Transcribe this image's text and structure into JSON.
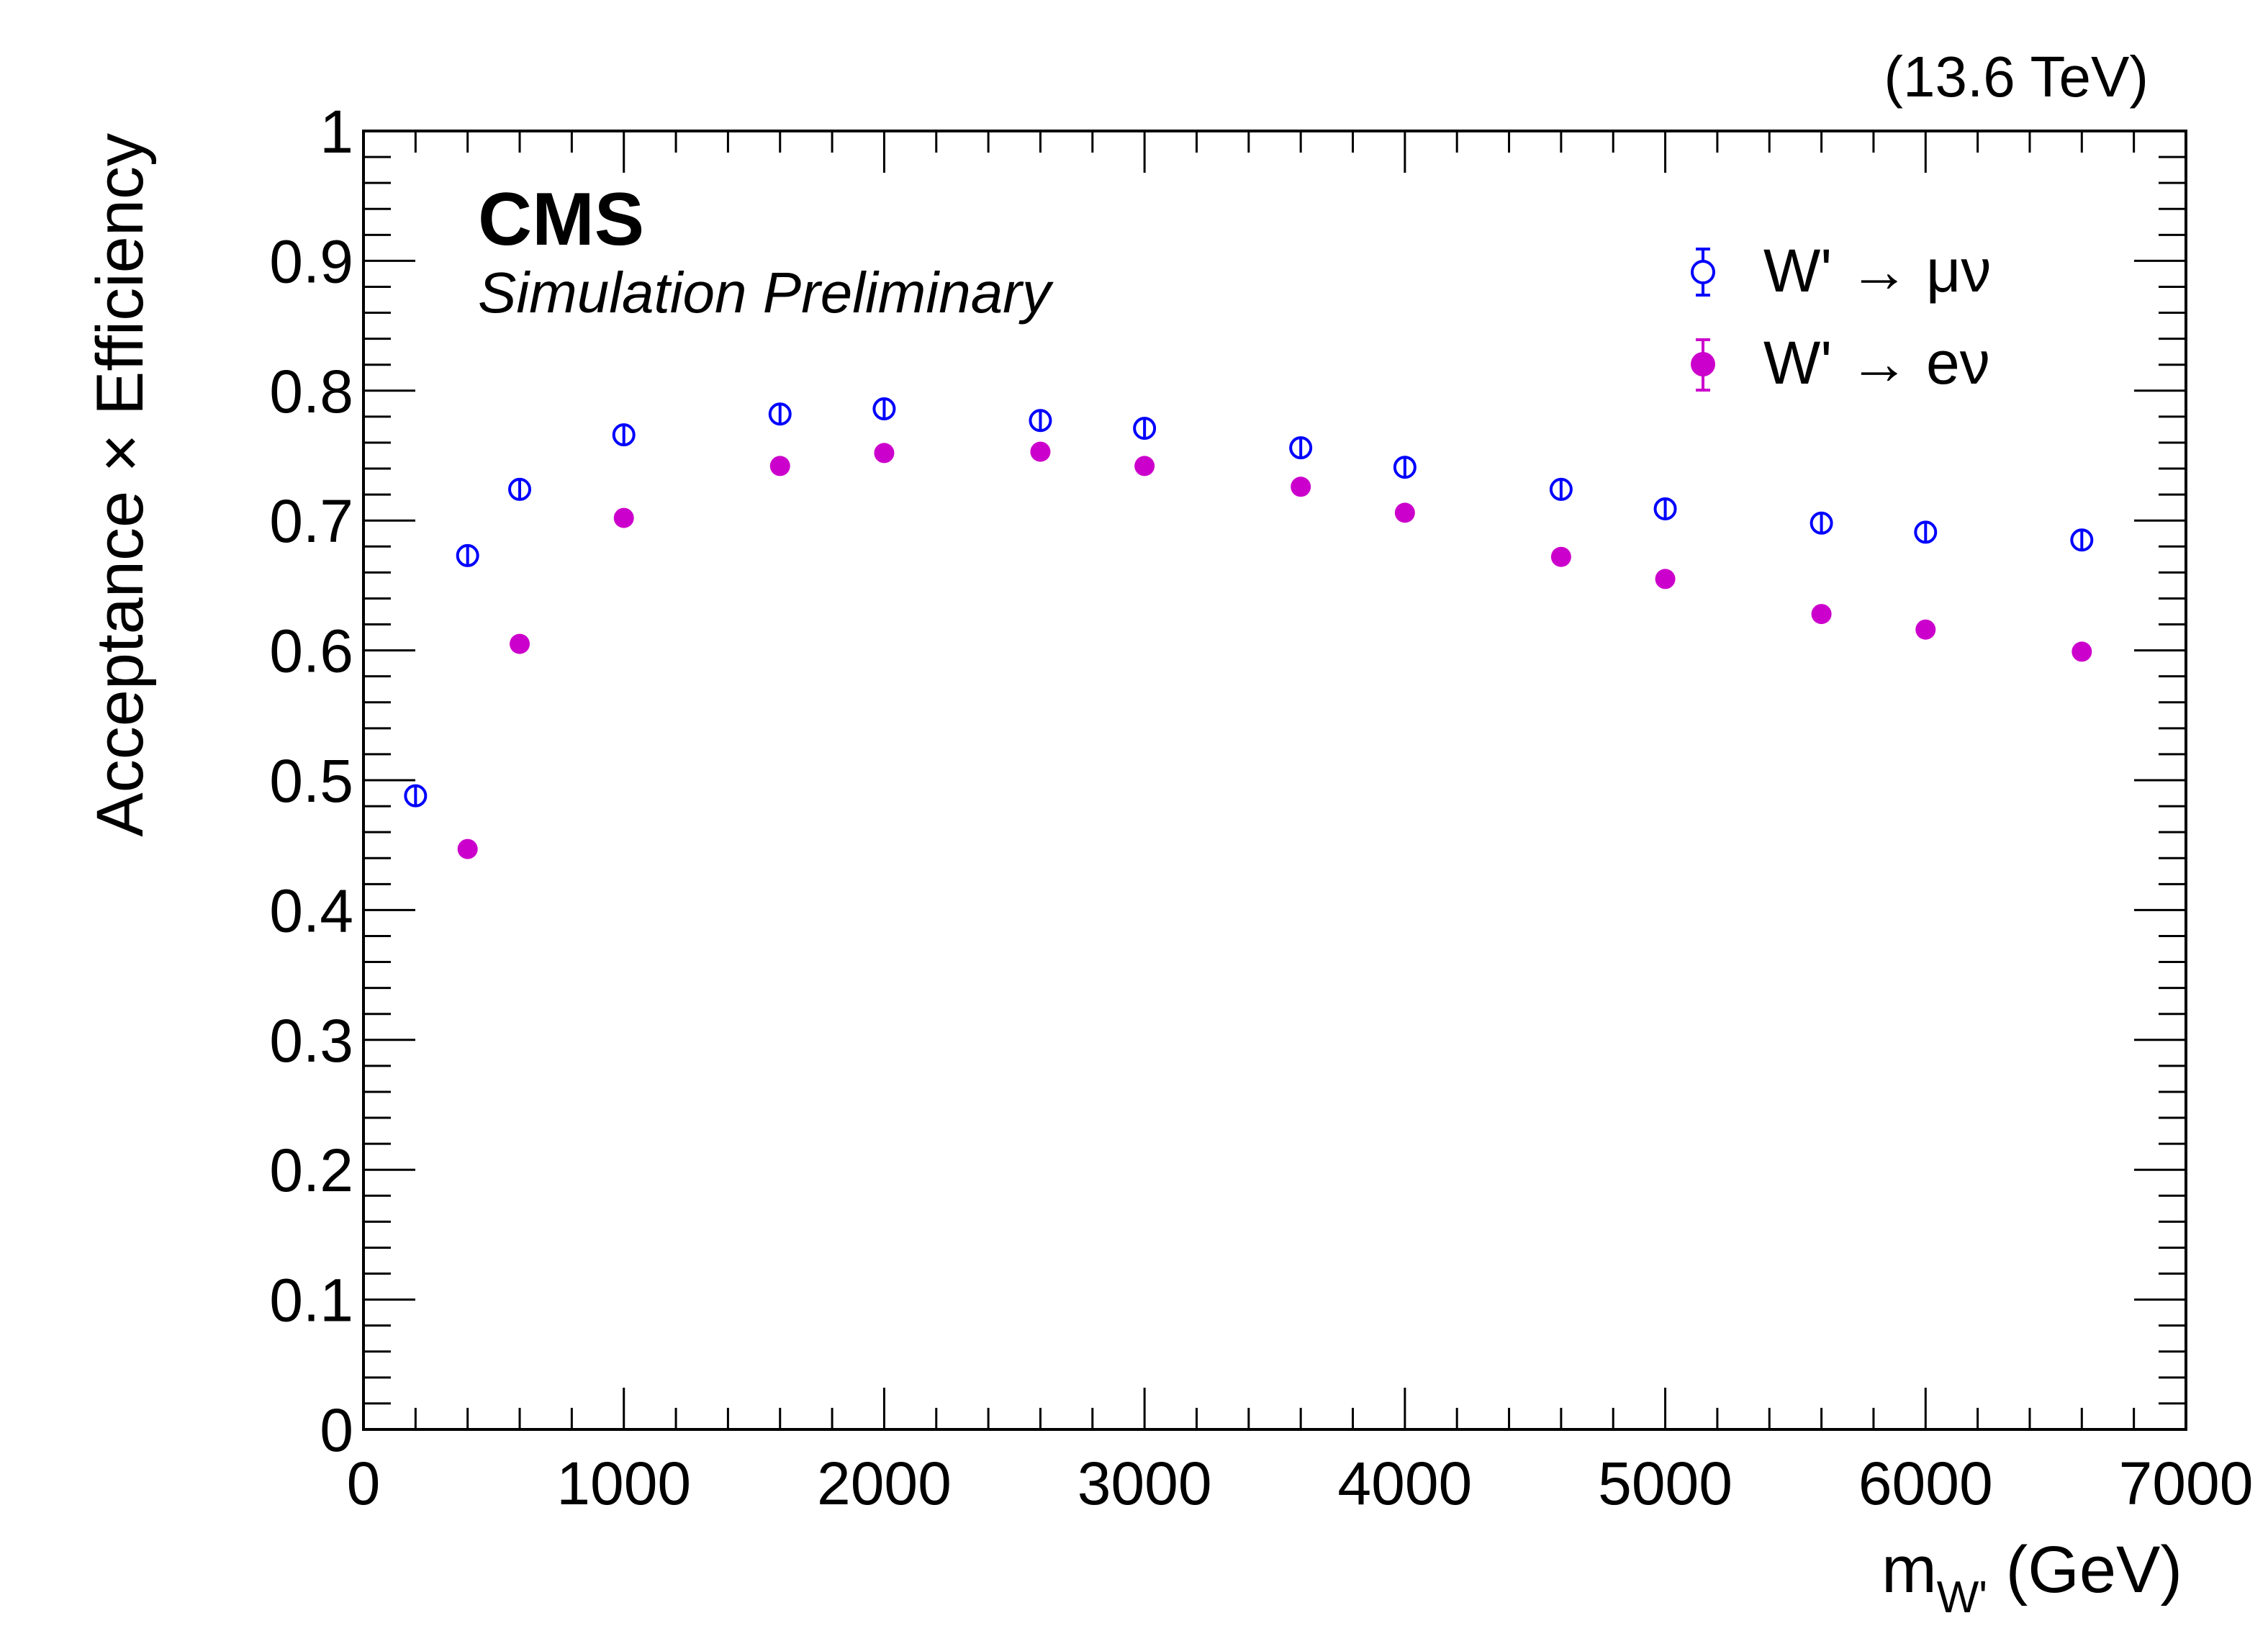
{
  "chart_data": {
    "type": "scatter",
    "title": "",
    "experiment_label": "CMS",
    "experiment_sublabel": "Simulation Preliminary",
    "energy_label": "(13.6 TeV)",
    "xlabel": "m",
    "xlabel_subscript": "W'",
    "xlabel_unit": " (GeV)",
    "ylabel": "Acceptance × Efficiency",
    "xlim": [
      0,
      7000
    ],
    "ylim": [
      0,
      1
    ],
    "xticks": [
      0,
      1000,
      2000,
      3000,
      4000,
      5000,
      6000,
      7000
    ],
    "xtick_labels": [
      "0",
      "1000",
      "2000",
      "3000",
      "4000",
      "5000",
      "6000",
      "7000"
    ],
    "yticks": [
      0,
      0.1,
      0.2,
      0.3,
      0.4,
      0.5,
      0.6,
      0.7,
      0.8,
      0.9,
      1
    ],
    "ytick_labels": [
      "0",
      "0.1",
      "0.2",
      "0.3",
      "0.4",
      "0.5",
      "0.6",
      "0.7",
      "0.8",
      "0.9",
      "1"
    ],
    "grid": false,
    "legend_position": "top-right",
    "series": [
      {
        "name": "W' → μν",
        "legend_label": "W'  →  μν",
        "marker": "open-circle",
        "color": "#0000ff",
        "x": [
          200,
          400,
          600,
          1000,
          1600,
          2000,
          2600,
          3000,
          3600,
          4000,
          4600,
          5000,
          5600,
          6000,
          6600
        ],
        "y": [
          0.488,
          0.673,
          0.724,
          0.766,
          0.782,
          0.786,
          0.777,
          0.771,
          0.756,
          0.741,
          0.724,
          0.709,
          0.698,
          0.691,
          0.685
        ]
      },
      {
        "name": "W' → eν",
        "legend_label": "W'  →  eν",
        "marker": "filled-circle",
        "color": "#cc00cc",
        "x": [
          400,
          600,
          1000,
          1600,
          2000,
          2600,
          3000,
          3600,
          4000,
          4600,
          5000,
          5600,
          6000,
          6600
        ],
        "y": [
          0.447,
          0.605,
          0.702,
          0.742,
          0.752,
          0.753,
          0.742,
          0.726,
          0.706,
          0.672,
          0.655,
          0.628,
          0.616,
          0.599
        ]
      }
    ]
  }
}
